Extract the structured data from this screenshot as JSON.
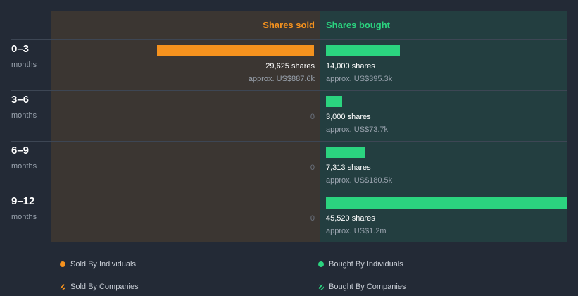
{
  "chart_data": {
    "type": "bar",
    "header": {
      "sold": "Shares sold",
      "bought": "Shares bought"
    },
    "rows": [
      {
        "period": "0–3",
        "unit": "months",
        "sold": 29625,
        "sold_label": "29,625 shares",
        "sold_approx": "approx. US$887.6k",
        "bought": 14000,
        "bought_label": "14,000 shares",
        "bought_approx": "approx. US$395.3k"
      },
      {
        "period": "3–6",
        "unit": "months",
        "sold": 0,
        "sold_zero": "0",
        "bought": 3000,
        "bought_label": "3,000 shares",
        "bought_approx": "approx. US$73.7k"
      },
      {
        "period": "6–9",
        "unit": "months",
        "sold": 0,
        "sold_zero": "0",
        "bought": 7313,
        "bought_label": "7,313 shares",
        "bought_approx": "approx. US$180.5k"
      },
      {
        "period": "9–12",
        "unit": "months",
        "sold": 0,
        "sold_zero": "0",
        "bought": 45520,
        "bought_label": "45,520 shares",
        "bought_approx": "approx. US$1.2m"
      }
    ],
    "legend": [
      "Sold By Individuals",
      "Bought By Individuals",
      "Sold By Companies",
      "Bought By Companies"
    ],
    "colors": {
      "sold": "#f5921e",
      "bought": "#2bd47f"
    }
  }
}
